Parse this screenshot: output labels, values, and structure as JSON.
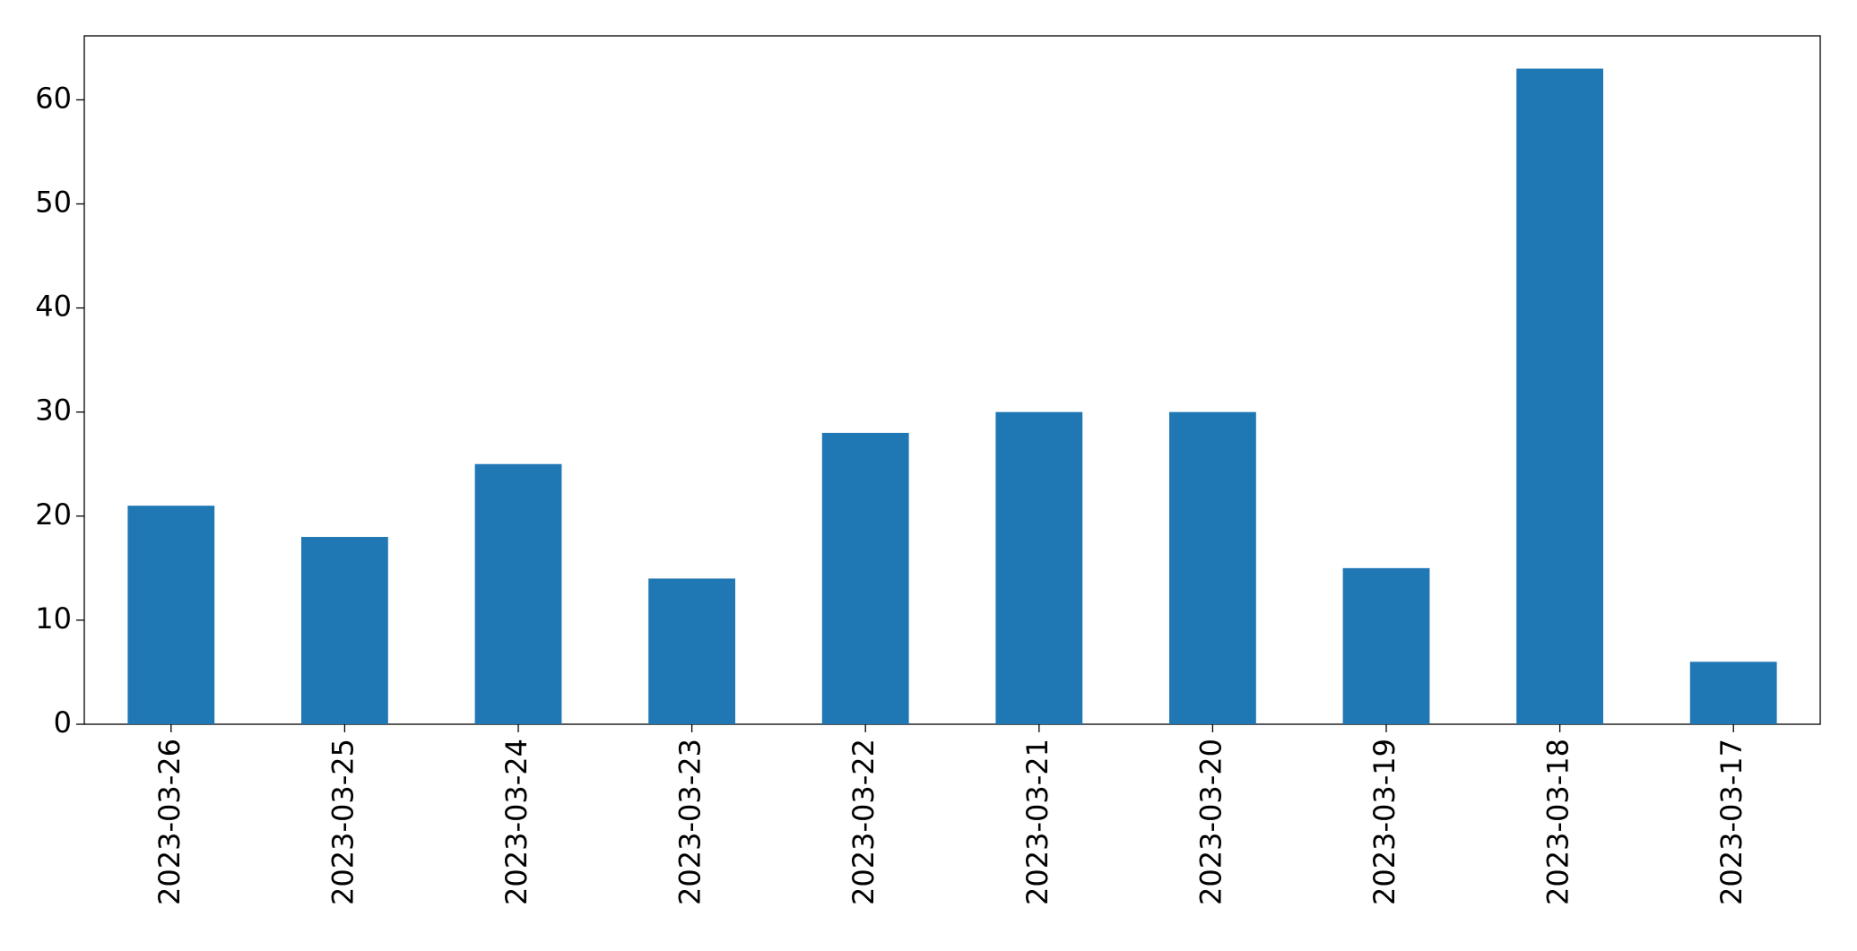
{
  "chart_data": {
    "type": "bar",
    "categories": [
      "2023-03-26",
      "2023-03-25",
      "2023-03-24",
      "2023-03-23",
      "2023-03-22",
      "2023-03-21",
      "2023-03-20",
      "2023-03-19",
      "2023-03-18",
      "2023-03-17"
    ],
    "values": [
      21,
      18,
      25,
      14,
      28,
      30,
      30,
      15,
      63,
      6
    ],
    "color": "#1f77b4",
    "ylim": [
      0,
      66.15
    ],
    "yticks": [
      0,
      10,
      20,
      30,
      40,
      50,
      60
    ],
    "grid": false
  }
}
